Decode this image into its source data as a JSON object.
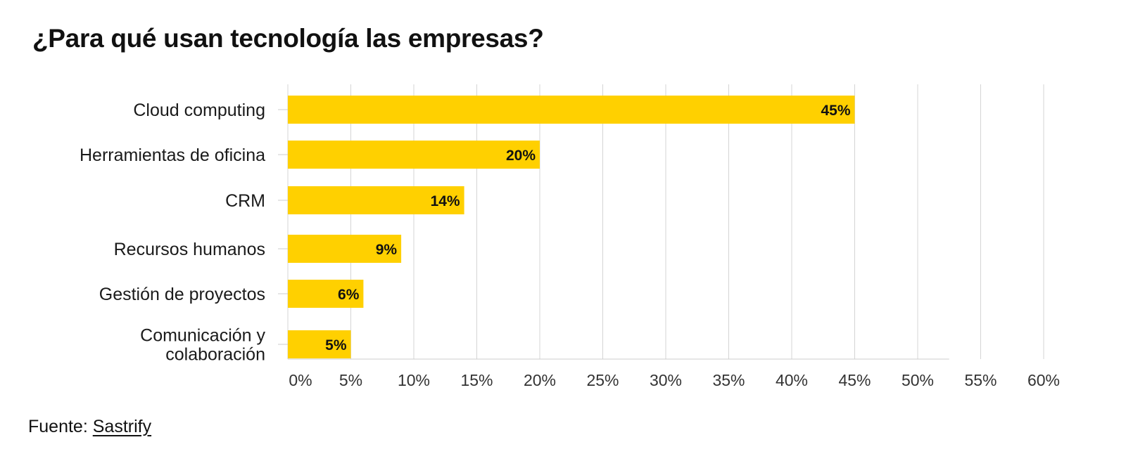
{
  "chart_data": {
    "type": "bar",
    "orientation": "horizontal",
    "title": "¿Para qué usan tecnología las empresas?",
    "categories": [
      "Cloud computing",
      "Herramientas de oficina",
      "CRM",
      "Recursos humanos",
      "Gestión de proyectos",
      "Comunicación y colaboración"
    ],
    "category_lines": [
      [
        "Cloud computing"
      ],
      [
        "Herramientas de oficina"
      ],
      [
        "CRM"
      ],
      [
        "Recursos humanos"
      ],
      [
        "Gestión de proyectos"
      ],
      [
        "Comunicación y",
        "colaboración"
      ]
    ],
    "values": [
      45,
      20,
      14,
      9,
      6,
      5
    ],
    "data_labels": [
      "45%",
      "20%",
      "14%",
      "9%",
      "6%",
      "5%"
    ],
    "xlim": [
      0,
      60
    ],
    "x_ticks": [
      0,
      5,
      10,
      15,
      20,
      25,
      30,
      35,
      40,
      45,
      50,
      55,
      60
    ],
    "x_tick_labels": [
      "0%",
      "5%",
      "10%",
      "15%",
      "20%",
      "25%",
      "30%",
      "35%",
      "40%",
      "45%",
      "50%",
      "55%",
      "60%"
    ],
    "xlabel": "",
    "ylabel": "",
    "grid": true,
    "legend": "none"
  },
  "colors": {
    "bar": "#FFD000",
    "grid": "#d4d4d4",
    "axis": "#cccccc"
  },
  "footer": {
    "source_label": "Fuente:",
    "source_name": "Sastrify"
  }
}
